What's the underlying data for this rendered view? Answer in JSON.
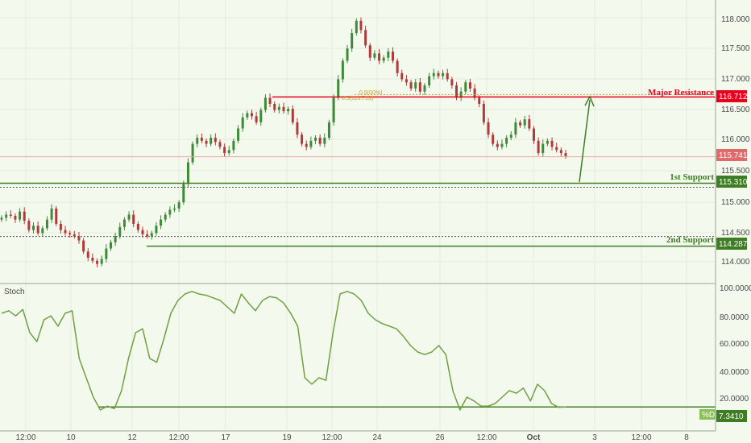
{
  "colors": {
    "background": "#f4f9ee",
    "candle_up": "#3f8a3a",
    "candle_down": "#b03a3a",
    "resistance": "#e8001c",
    "support": "#3e7d24",
    "stoch_line": "#6fa040",
    "price_line": "#f2a0a0",
    "fib": "#c8a030"
  },
  "price_axis": {
    "ticks": [
      "118.000",
      "117.500",
      "117.000",
      "116.500",
      "116.000",
      "115.500",
      "115.000",
      "114.500",
      "114.000"
    ],
    "current_price_tag": "115.741"
  },
  "time_axis": {
    "ticks": [
      "12:00",
      "10",
      "12",
      "12:00",
      "17",
      "19",
      "12:00",
      "24",
      "26",
      "12:00",
      "Oct",
      "3",
      "12:00",
      "8"
    ]
  },
  "annotations": {
    "major_resistance": {
      "label": "Major Resistance",
      "value_tag": "116.712"
    },
    "first_support": {
      "label": "1st Support",
      "value_tag": "115.310"
    },
    "second_support": {
      "label": "2nd Support",
      "value_tag": "114.287"
    },
    "fib_label": "0.5(116.713)",
    "fib_label_small": "0.5(00%)"
  },
  "oscillator": {
    "title": "Stoch",
    "ticks": [
      "100.0000",
      "80.0000",
      "60.0000",
      "40.0000",
      "20.0000"
    ],
    "series_tag": "%D",
    "value_tag": "7.3410"
  },
  "chart_data": [
    {
      "type": "candlestick",
      "ylim": [
        113.8,
        118.2
      ],
      "levels": {
        "major_resistance": 116.712,
        "first_support": 115.31,
        "second_support": 114.287,
        "current_price": 115.741
      },
      "close_path": [
        114.75,
        114.8,
        114.78,
        114.72,
        114.85,
        114.7,
        114.55,
        114.62,
        114.5,
        114.58,
        114.72,
        114.9,
        114.65,
        114.55,
        114.5,
        114.48,
        114.45,
        114.38,
        114.2,
        114.1,
        114.05,
        114.0,
        114.08,
        114.25,
        114.35,
        114.45,
        114.6,
        114.72,
        114.8,
        114.65,
        114.55,
        114.48,
        114.45,
        114.5,
        114.62,
        114.72,
        114.8,
        114.88,
        114.9,
        115.0,
        115.3,
        115.65,
        115.95,
        116.05,
        116.0,
        115.95,
        116.05,
        115.98,
        115.9,
        115.8,
        115.85,
        116.0,
        116.2,
        116.38,
        116.45,
        116.4,
        116.3,
        116.5,
        116.7,
        116.6,
        116.5,
        116.55,
        116.48,
        116.52,
        116.3,
        116.1,
        115.95,
        115.9,
        116.0,
        116.05,
        115.95,
        116.05,
        116.3,
        116.7,
        117.0,
        117.3,
        117.5,
        117.75,
        117.95,
        117.8,
        117.55,
        117.35,
        117.42,
        117.3,
        117.35,
        117.45,
        117.3,
        117.1,
        117.0,
        116.95,
        116.85,
        116.95,
        116.8,
        116.9,
        117.05,
        117.1,
        117.05,
        117.1,
        117.0,
        116.9,
        116.7,
        116.8,
        116.95,
        116.85,
        116.7,
        116.6,
        116.3,
        116.1,
        115.95,
        115.9,
        115.95,
        116.05,
        116.1,
        116.3,
        116.25,
        116.35,
        116.2,
        116.0,
        115.8,
        115.95,
        116.0,
        115.9,
        115.85,
        115.8,
        115.75
      ]
    },
    {
      "type": "line",
      "title": "Stoch",
      "ylim": [
        0,
        100
      ],
      "series": [
        {
          "name": "%D",
          "values": [
            80,
            82,
            78,
            83,
            65,
            58,
            75,
            78,
            70,
            80,
            82,
            45,
            30,
            15,
            5,
            8,
            6,
            20,
            45,
            65,
            68,
            45,
            42,
            60,
            80,
            90,
            95,
            97,
            95,
            94,
            92,
            90,
            85,
            80,
            95,
            88,
            82,
            90,
            93,
            92,
            88,
            80,
            70,
            30,
            25,
            30,
            28,
            65,
            95,
            97,
            95,
            90,
            80,
            75,
            72,
            70,
            68,
            62,
            55,
            50,
            48,
            50,
            55,
            48,
            20,
            5,
            15,
            12,
            8,
            8,
            10,
            15,
            20,
            18,
            22,
            12,
            25,
            20,
            10,
            7,
            7.341
          ]
        }
      ]
    }
  ]
}
